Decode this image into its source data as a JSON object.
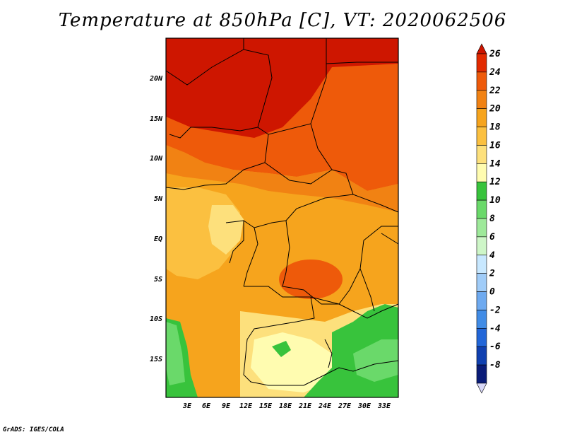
{
  "title": "Temperature at 850hPa [C], VT: 2020062506",
  "footer": "GrADS: IGES/COLA",
  "map": {
    "lon_range": [
      0,
      35
    ],
    "lat_range": [
      -20,
      25
    ],
    "lon_ticks": [
      "3E",
      "6E",
      "9E",
      "12E",
      "15E",
      "18E",
      "21E",
      "24E",
      "27E",
      "30E",
      "33E"
    ],
    "lat_ticks": [
      "20N",
      "15N",
      "10N",
      "5N",
      "EQ",
      "5S",
      "10S",
      "15S"
    ]
  },
  "colorbar": {
    "levels": [
      "26",
      "24",
      "22",
      "20",
      "18",
      "16",
      "14",
      "12",
      "10",
      "8",
      "6",
      "4",
      "2",
      "0",
      "-2",
      "-4",
      "-6",
      "-8"
    ],
    "colors": [
      "#cc1400",
      "#e22a00",
      "#ee5a0a",
      "#f18213",
      "#f6a41d",
      "#fbc040",
      "#fde07c",
      "#fffcb0",
      "#38c33c",
      "#6ad96a",
      "#9ee99a",
      "#cef6c8",
      "#c8e8ff",
      "#a0ccf8",
      "#6eaaf0",
      "#418ce6",
      "#2266d8",
      "#1040b0",
      "#0a1c78",
      "#d8d8f8"
    ]
  }
}
